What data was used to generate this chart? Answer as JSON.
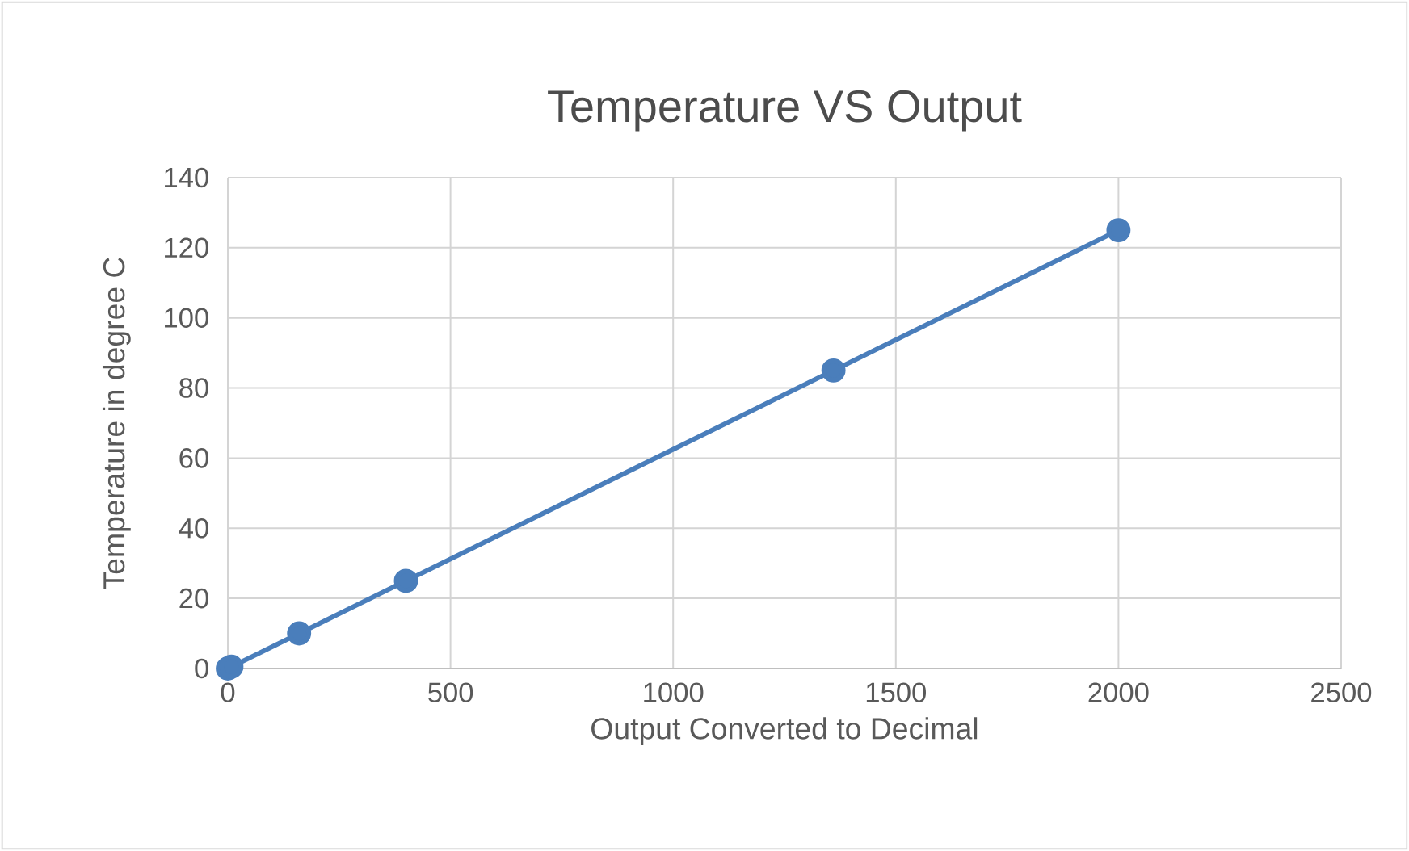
{
  "chart_data": {
    "type": "line",
    "title": "Temperature VS Output",
    "xlabel": "Output Converted to Decimal",
    "ylabel": "Temperature in degree C",
    "x": [
      0,
      8,
      160,
      400,
      1360,
      2000
    ],
    "series": [
      {
        "color": "#4a7ebb",
        "values": [
          0,
          0.5,
          10,
          25,
          85,
          125
        ]
      }
    ],
    "xlim": [
      0,
      2500
    ],
    "xticks": [
      0,
      500,
      1000,
      1500,
      2000,
      2500
    ],
    "ylim": [
      0,
      140
    ],
    "yticks": [
      0,
      20,
      40,
      60,
      80,
      100,
      120,
      140
    ],
    "grid": true,
    "marker": "circle",
    "line_style": "solid"
  }
}
